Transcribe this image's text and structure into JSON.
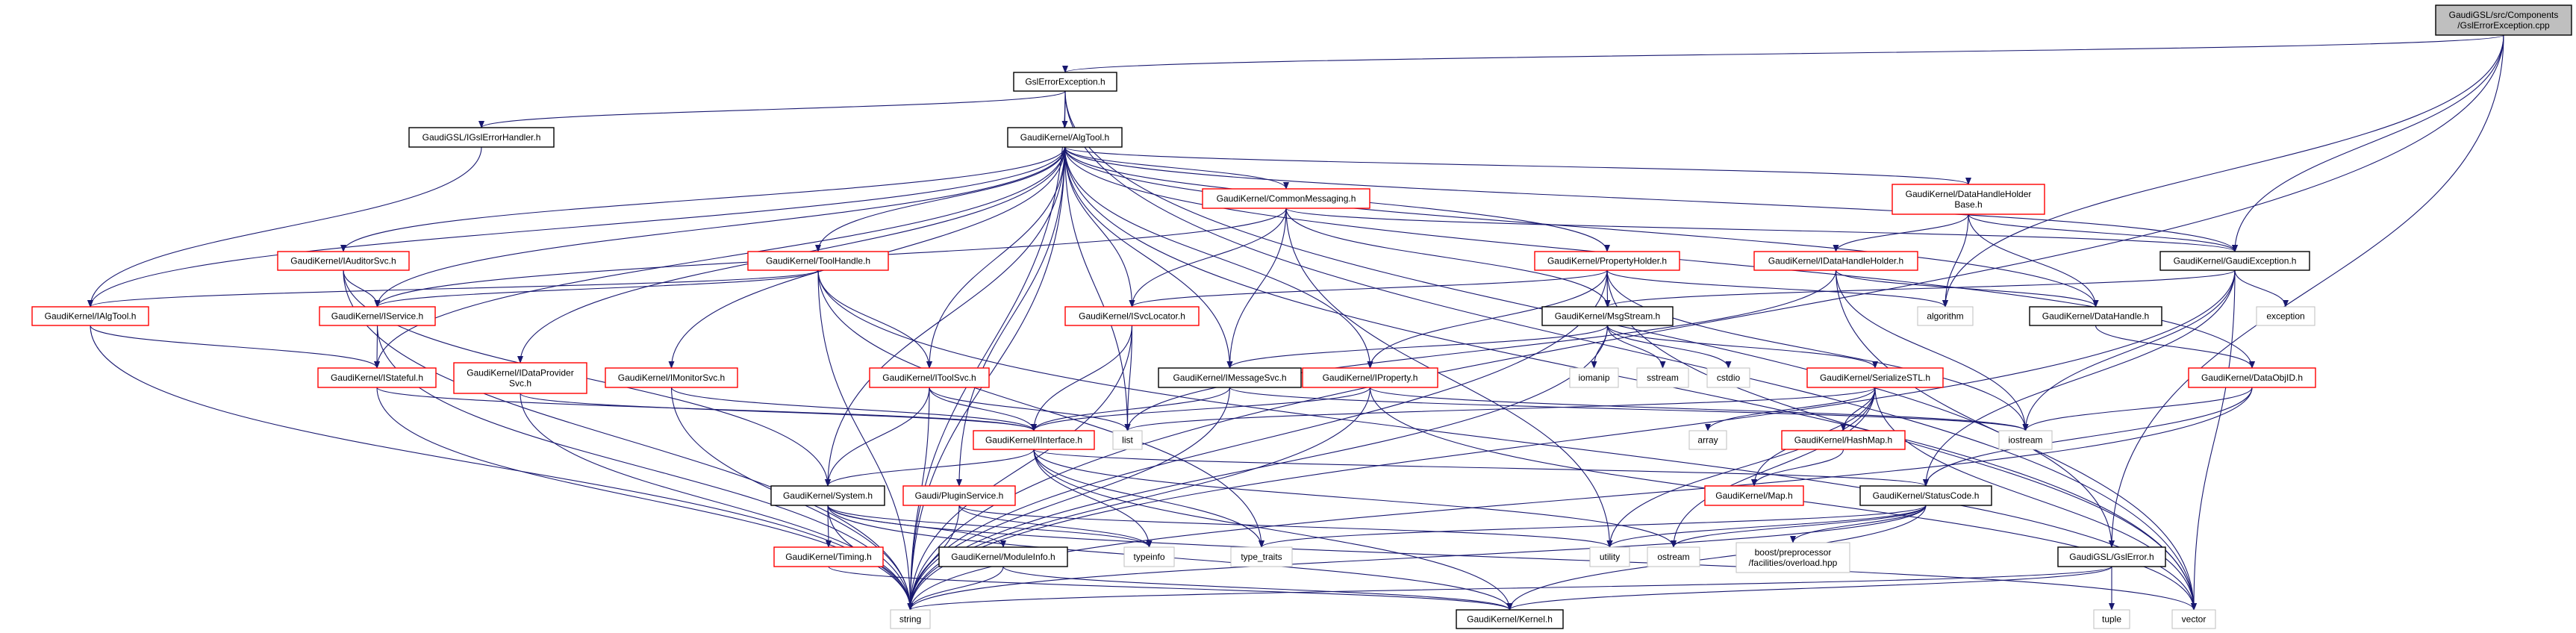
{
  "diagram": {
    "type": "include-dependency-graph",
    "colors": {
      "edge": "#191970",
      "documented_border": "#000000",
      "incomplete_border": "#ff0000",
      "external_border": "#bfbfbf",
      "root_fill": "#bfbfbf"
    },
    "nodes": [
      {
        "id": "root",
        "lines": [
          "GaudiGSL/src/Components",
          "/GslErrorException.cpp"
        ],
        "kind": "root"
      },
      {
        "id": "gslexc",
        "lines": [
          "GslErrorException.h"
        ],
        "kind": "black"
      },
      {
        "id": "igslhandler",
        "lines": [
          "GaudiGSL/IGslErrorHandler.h"
        ],
        "kind": "black"
      },
      {
        "id": "algtool",
        "lines": [
          "GaudiKernel/AlgTool.h"
        ],
        "kind": "black"
      },
      {
        "id": "commonmsg",
        "lines": [
          "GaudiKernel/CommonMessaging.h"
        ],
        "kind": "red"
      },
      {
        "id": "dhhbase",
        "lines": [
          "GaudiKernel/DataHandleHolder",
          "Base.h"
        ],
        "kind": "red"
      },
      {
        "id": "iauditorsvc",
        "lines": [
          "GaudiKernel/IAuditorSvc.h"
        ],
        "kind": "red"
      },
      {
        "id": "toolhandle",
        "lines": [
          "GaudiKernel/ToolHandle.h"
        ],
        "kind": "red"
      },
      {
        "id": "propholder",
        "lines": [
          "GaudiKernel/PropertyHolder.h"
        ],
        "kind": "red"
      },
      {
        "id": "idhh",
        "lines": [
          "GaudiKernel/IDataHandleHolder.h"
        ],
        "kind": "red"
      },
      {
        "id": "gaudiexc",
        "lines": [
          "GaudiKernel/GaudiException.h"
        ],
        "kind": "black"
      },
      {
        "id": "ialgtool",
        "lines": [
          "GaudiKernel/IAlgTool.h"
        ],
        "kind": "red"
      },
      {
        "id": "iservice",
        "lines": [
          "GaudiKernel/IService.h"
        ],
        "kind": "red"
      },
      {
        "id": "isvclocator",
        "lines": [
          "GaudiKernel/ISvcLocator.h"
        ],
        "kind": "red"
      },
      {
        "id": "msgstream",
        "lines": [
          "GaudiKernel/MsgStream.h"
        ],
        "kind": "black"
      },
      {
        "id": "algorithm",
        "lines": [
          "algorithm"
        ],
        "kind": "gray"
      },
      {
        "id": "datahandle",
        "lines": [
          "GaudiKernel/DataHandle.h"
        ],
        "kind": "black"
      },
      {
        "id": "exception",
        "lines": [
          "exception"
        ],
        "kind": "gray"
      },
      {
        "id": "istateful",
        "lines": [
          "GaudiKernel/IStateful.h"
        ],
        "kind": "red"
      },
      {
        "id": "idataprovider",
        "lines": [
          "GaudiKernel/IDataProvider",
          "Svc.h"
        ],
        "kind": "red"
      },
      {
        "id": "imonitorsvc",
        "lines": [
          "GaudiKernel/IMonitorSvc.h"
        ],
        "kind": "red"
      },
      {
        "id": "itoolsvc",
        "lines": [
          "GaudiKernel/IToolSvc.h"
        ],
        "kind": "red"
      },
      {
        "id": "imessagesvc",
        "lines": [
          "GaudiKernel/IMessageSvc.h"
        ],
        "kind": "black"
      },
      {
        "id": "iproperty",
        "lines": [
          "GaudiKernel/IProperty.h"
        ],
        "kind": "red"
      },
      {
        "id": "iomanip",
        "lines": [
          "iomanip"
        ],
        "kind": "gray"
      },
      {
        "id": "sstream",
        "lines": [
          "sstream"
        ],
        "kind": "gray"
      },
      {
        "id": "cstdio",
        "lines": [
          "cstdio"
        ],
        "kind": "gray"
      },
      {
        "id": "serializestl",
        "lines": [
          "GaudiKernel/SerializeSTL.h"
        ],
        "kind": "red"
      },
      {
        "id": "dataobjid",
        "lines": [
          "GaudiKernel/DataObjID.h"
        ],
        "kind": "red"
      },
      {
        "id": "iinterface",
        "lines": [
          "GaudiKernel/IInterface.h"
        ],
        "kind": "red"
      },
      {
        "id": "list",
        "lines": [
          "list"
        ],
        "kind": "gray"
      },
      {
        "id": "array",
        "lines": [
          "array"
        ],
        "kind": "gray"
      },
      {
        "id": "hashmap",
        "lines": [
          "GaudiKernel/HashMap.h"
        ],
        "kind": "red"
      },
      {
        "id": "iostream",
        "lines": [
          "iostream"
        ],
        "kind": "gray"
      },
      {
        "id": "system",
        "lines": [
          "GaudiKernel/System.h"
        ],
        "kind": "black"
      },
      {
        "id": "pluginservice",
        "lines": [
          "Gaudi/PluginService.h"
        ],
        "kind": "red"
      },
      {
        "id": "map",
        "lines": [
          "GaudiKernel/Map.h"
        ],
        "kind": "red"
      },
      {
        "id": "statuscode",
        "lines": [
          "GaudiKernel/StatusCode.h"
        ],
        "kind": "black"
      },
      {
        "id": "timing",
        "lines": [
          "GaudiKernel/Timing.h"
        ],
        "kind": "red"
      },
      {
        "id": "moduleinfo",
        "lines": [
          "GaudiKernel/ModuleInfo.h"
        ],
        "kind": "black"
      },
      {
        "id": "typeinfo",
        "lines": [
          "typeinfo"
        ],
        "kind": "gray"
      },
      {
        "id": "typetraits",
        "lines": [
          "type_traits"
        ],
        "kind": "gray"
      },
      {
        "id": "utility",
        "lines": [
          "utility"
        ],
        "kind": "gray"
      },
      {
        "id": "ostream",
        "lines": [
          "ostream"
        ],
        "kind": "gray"
      },
      {
        "id": "boost",
        "lines": [
          "boost/preprocessor",
          "/facilities/overload.hpp"
        ],
        "kind": "gray"
      },
      {
        "id": "gslerror",
        "lines": [
          "GaudiGSL/GslError.h"
        ],
        "kind": "black"
      },
      {
        "id": "string",
        "lines": [
          "string"
        ],
        "kind": "gray"
      },
      {
        "id": "kernel",
        "lines": [
          "GaudiKernel/Kernel.h"
        ],
        "kind": "black"
      },
      {
        "id": "tuple",
        "lines": [
          "tuple"
        ],
        "kind": "gray"
      },
      {
        "id": "vector",
        "lines": [
          "vector"
        ],
        "kind": "gray"
      }
    ],
    "edges": [
      [
        "root",
        "gslexc"
      ],
      [
        "root",
        "algorithm"
      ],
      [
        "root",
        "gaudiexc"
      ],
      [
        "root",
        "gslerror"
      ],
      [
        "root",
        "string"
      ],
      [
        "gslexc",
        "igslhandler"
      ],
      [
        "gslexc",
        "algtool"
      ],
      [
        "gslexc",
        "string"
      ],
      [
        "gslexc",
        "gslerror"
      ],
      [
        "gslexc",
        "vector"
      ],
      [
        "igslhandler",
        "ialgtool"
      ],
      [
        "algtool",
        "ialgtool"
      ],
      [
        "algtool",
        "iauditorsvc"
      ],
      [
        "algtool",
        "iservice"
      ],
      [
        "algtool",
        "istateful"
      ],
      [
        "algtool",
        "idataprovider"
      ],
      [
        "algtool",
        "imonitorsvc"
      ],
      [
        "algtool",
        "toolhandle"
      ],
      [
        "algtool",
        "itoolsvc"
      ],
      [
        "algtool",
        "list"
      ],
      [
        "algtool",
        "isvclocator"
      ],
      [
        "algtool",
        "imessagesvc"
      ],
      [
        "algtool",
        "commonmsg"
      ],
      [
        "algtool",
        "iproperty"
      ],
      [
        "algtool",
        "propholder"
      ],
      [
        "algtool",
        "dhhbase"
      ],
      [
        "algtool",
        "datahandle"
      ],
      [
        "algtool",
        "dataobjid"
      ],
      [
        "algtool",
        "gaudiexc"
      ],
      [
        "algtool",
        "vector"
      ],
      [
        "algtool",
        "system"
      ],
      [
        "algtool",
        "pluginservice"
      ],
      [
        "algtool",
        "string"
      ],
      [
        "commonmsg",
        "iservice"
      ],
      [
        "commonmsg",
        "isvclocator"
      ],
      [
        "commonmsg",
        "imessagesvc"
      ],
      [
        "commonmsg",
        "msgstream"
      ],
      [
        "commonmsg",
        "gaudiexc"
      ],
      [
        "commonmsg",
        "utility"
      ],
      [
        "iauditorsvc",
        "iservice"
      ],
      [
        "iauditorsvc",
        "system"
      ],
      [
        "iauditorsvc",
        "string"
      ],
      [
        "toolhandle",
        "ialgtool"
      ],
      [
        "toolhandle",
        "itoolsvc"
      ],
      [
        "toolhandle",
        "iservice"
      ],
      [
        "toolhandle",
        "string"
      ],
      [
        "toolhandle",
        "typetraits"
      ],
      [
        "toolhandle",
        "vector"
      ],
      [
        "ialgtool",
        "istateful"
      ],
      [
        "ialgtool",
        "string"
      ],
      [
        "iservice",
        "istateful"
      ],
      [
        "iservice",
        "string"
      ],
      [
        "istateful",
        "iinterface"
      ],
      [
        "istateful",
        "string"
      ],
      [
        "idataprovider",
        "iinterface"
      ],
      [
        "idataprovider",
        "string"
      ],
      [
        "imonitorsvc",
        "iinterface"
      ],
      [
        "imonitorsvc",
        "string"
      ],
      [
        "itoolsvc",
        "iinterface"
      ],
      [
        "itoolsvc",
        "list"
      ],
      [
        "itoolsvc",
        "system"
      ],
      [
        "itoolsvc",
        "string"
      ],
      [
        "isvclocator",
        "iinterface"
      ],
      [
        "isvclocator",
        "list"
      ],
      [
        "isvclocator",
        "string"
      ],
      [
        "imessagesvc",
        "iinterface"
      ],
      [
        "imessagesvc",
        "iostream"
      ],
      [
        "imessagesvc",
        "string"
      ],
      [
        "iproperty",
        "iinterface"
      ],
      [
        "iproperty",
        "iostream"
      ],
      [
        "iproperty",
        "string"
      ],
      [
        "iproperty",
        "vector"
      ],
      [
        "propholder",
        "isvclocator"
      ],
      [
        "propholder",
        "msgstream"
      ],
      [
        "propholder",
        "iproperty"
      ],
      [
        "propholder",
        "algorithm"
      ],
      [
        "propholder",
        "string"
      ],
      [
        "propholder",
        "vector"
      ],
      [
        "propholder",
        "iostream"
      ],
      [
        "msgstream",
        "imessagesvc"
      ],
      [
        "msgstream",
        "serializestl"
      ],
      [
        "msgstream",
        "iomanip"
      ],
      [
        "msgstream",
        "sstream"
      ],
      [
        "msgstream",
        "cstdio"
      ],
      [
        "msgstream",
        "string"
      ],
      [
        "serializestl",
        "array"
      ],
      [
        "serializestl",
        "hashmap"
      ],
      [
        "serializestl",
        "map"
      ],
      [
        "serializestl",
        "utility"
      ],
      [
        "serializestl",
        "ostream"
      ],
      [
        "serializestl",
        "list"
      ],
      [
        "serializestl",
        "vector"
      ],
      [
        "hashmap",
        "map"
      ],
      [
        "iinterface",
        "system"
      ],
      [
        "iinterface",
        "statuscode"
      ],
      [
        "iinterface",
        "kernel"
      ],
      [
        "iinterface",
        "typeinfo"
      ],
      [
        "iinterface",
        "typetraits"
      ],
      [
        "iinterface",
        "ostream"
      ],
      [
        "system",
        "timing"
      ],
      [
        "system",
        "moduleinfo"
      ],
      [
        "system",
        "kernel"
      ],
      [
        "system",
        "string"
      ],
      [
        "system",
        "vector"
      ],
      [
        "system",
        "typeinfo"
      ],
      [
        "pluginservice",
        "string"
      ],
      [
        "pluginservice",
        "typeinfo"
      ],
      [
        "pluginservice",
        "utility"
      ],
      [
        "timing",
        "kernel"
      ],
      [
        "moduleinfo",
        "kernel"
      ],
      [
        "moduleinfo",
        "string"
      ],
      [
        "statuscode",
        "kernel"
      ],
      [
        "statuscode",
        "utility"
      ],
      [
        "statuscode",
        "ostream"
      ],
      [
        "statuscode",
        "boost"
      ],
      [
        "statuscode",
        "typetraits"
      ],
      [
        "statuscode",
        "string"
      ],
      [
        "dhhbase",
        "idhh"
      ],
      [
        "dhhbase",
        "algorithm"
      ],
      [
        "dhhbase",
        "datahandle"
      ],
      [
        "dhhbase",
        "gaudiexc"
      ],
      [
        "idhh",
        "datahandle"
      ],
      [
        "idhh",
        "list"
      ],
      [
        "idhh",
        "vector"
      ],
      [
        "idhh",
        "iostream"
      ],
      [
        "gaudiexc",
        "statuscode"
      ],
      [
        "gaudiexc",
        "exception"
      ],
      [
        "gaudiexc",
        "iostream"
      ],
      [
        "gaudiexc",
        "string"
      ],
      [
        "gaudiexc",
        "msgstream"
      ],
      [
        "gaudiexc",
        "vector"
      ],
      [
        "datahandle",
        "dataobjid"
      ],
      [
        "dataobjid",
        "iostream"
      ],
      [
        "dataobjid",
        "string"
      ],
      [
        "dataobjid",
        "statuscode"
      ],
      [
        "gslerror",
        "string"
      ],
      [
        "gslerror",
        "tuple"
      ],
      [
        "gslerror",
        "kernel"
      ]
    ]
  }
}
